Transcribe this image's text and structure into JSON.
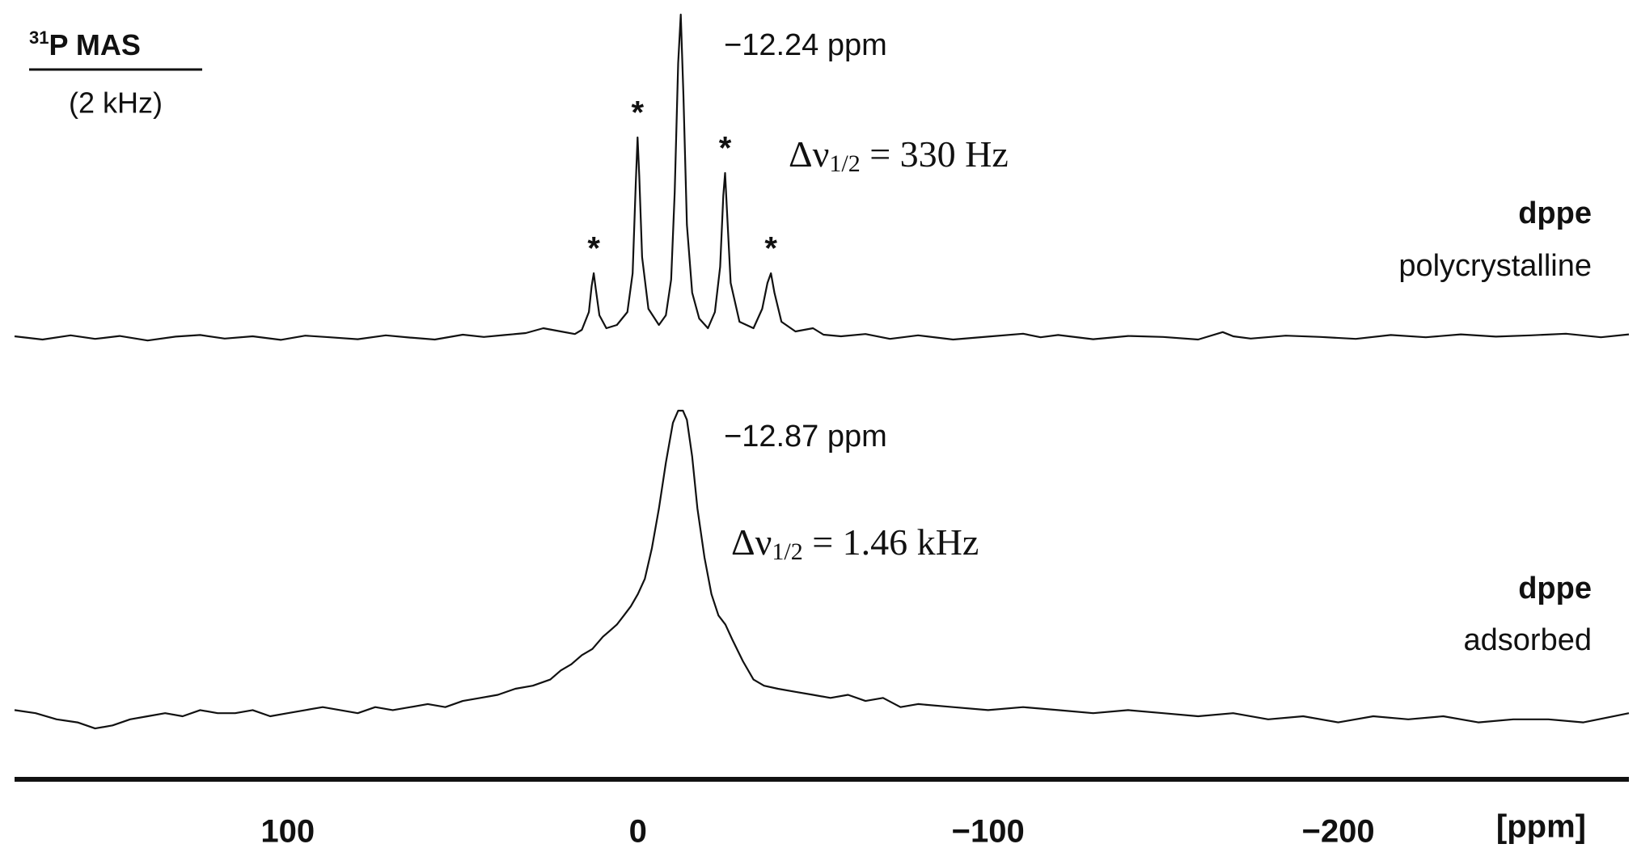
{
  "chart_data": {
    "type": "line",
    "title_isotope": "31",
    "title": "P MAS",
    "subtitle": "(2 kHz)",
    "x_label": "[ppm]",
    "xlim": [
      178,
      -283
    ],
    "xticks": [
      100,
      0,
      {
        "value": -100,
        "label": "−100"
      },
      {
        "value": -200,
        "label": "−200"
      }
    ],
    "color": "#111111",
    "sideband_marker": "*",
    "sideband_ppm": [
      12.6,
      0.1,
      -24.9,
      -38
    ],
    "series": [
      {
        "compound": "dppe",
        "state": "polycrystalline",
        "peak_label": "−12.24 ppm",
        "width_symbol": "Δν",
        "width_sub": "1/2",
        "width_value": " = 330 Hz",
        "x": [
          178,
          170,
          162,
          155,
          148,
          140,
          132,
          125,
          118,
          110,
          102,
          95,
          88,
          80,
          72,
          65,
          58,
          50,
          44,
          38,
          32,
          27,
          22,
          18,
          16,
          14,
          13.2,
          12.6,
          12,
          11,
          9,
          6,
          3,
          1.5,
          0.6,
          0.1,
          -0.4,
          -1.2,
          -3,
          -6,
          -8,
          -9.5,
          -10.5,
          -11.5,
          -12.24,
          -13,
          -14,
          -15.5,
          -17.5,
          -20,
          -22,
          -23.5,
          -24.4,
          -24.9,
          -25.4,
          -26.5,
          -29,
          -33,
          -35.5,
          -37,
          -38,
          -39,
          -41,
          -45,
          -50,
          -53,
          -58,
          -65,
          -72,
          -80,
          -90,
          -100,
          -110,
          -115,
          -120,
          -130,
          -140,
          -150,
          -160,
          -167,
          -170,
          -175,
          -185,
          -195,
          -205,
          -215,
          -225,
          -235,
          -245,
          -255,
          -265,
          -275,
          -283
        ],
        "values": [
          0.5,
          -0.5,
          0.8,
          -0.3,
          0.6,
          -0.8,
          0.4,
          0.9,
          -0.2,
          0.5,
          -0.6,
          0.7,
          0.2,
          -0.4,
          0.8,
          0.1,
          -0.5,
          1,
          0.3,
          0.9,
          1.5,
          3,
          2,
          1.2,
          2.5,
          8,
          16,
          20,
          15,
          7,
          3,
          4,
          8,
          20,
          48,
          62,
          50,
          25,
          9,
          4,
          7,
          18,
          45,
          85,
          100,
          75,
          35,
          14,
          6,
          3,
          8,
          22,
          44,
          51,
          40,
          17,
          5,
          3,
          9,
          17,
          20,
          14,
          5,
          2,
          3,
          1,
          0.5,
          1.2,
          -0.3,
          0.8,
          -0.5,
          0.4,
          1.3,
          0.2,
          0.9,
          -0.4,
          0.6,
          0.3,
          -0.5,
          1.8,
          0.5,
          -0.2,
          0.7,
          0.3,
          -0.3,
          0.9,
          0.2,
          1.1,
          0.4,
          0.8,
          1.3,
          0.2,
          1.1
        ]
      },
      {
        "compound": "dppe",
        "state": "adsorbed",
        "peak_label": "−12.87 ppm",
        "width_symbol": "Δν",
        "width_sub": "1/2",
        "width_value": " = 1.46 kHz",
        "x": [
          178,
          172,
          166,
          160,
          155,
          150,
          145,
          140,
          135,
          130,
          125,
          120,
          115,
          110,
          105,
          100,
          95,
          90,
          85,
          80,
          75,
          70,
          65,
          60,
          55,
          50,
          45,
          40,
          35,
          30,
          25,
          22,
          19,
          16,
          13,
          10,
          8,
          6,
          4,
          2,
          0,
          -2,
          -4,
          -6,
          -8,
          -10,
          -11.5,
          -12.87,
          -14,
          -15.5,
          -17,
          -19,
          -21,
          -23,
          -25,
          -27,
          -30,
          -33,
          -36,
          -40,
          -45,
          -50,
          -55,
          -60,
          -65,
          -70,
          -75,
          -80,
          -90,
          -100,
          -110,
          -120,
          -130,
          -140,
          -150,
          -160,
          -170,
          -180,
          -190,
          -200,
          -210,
          -220,
          -230,
          -240,
          -250,
          -260,
          -270,
          -283
        ],
        "values": [
          2,
          1,
          -1,
          -2,
          -4,
          -3,
          -1,
          0,
          1,
          0,
          2,
          1,
          1,
          2,
          0,
          1,
          2,
          3,
          2,
          1,
          3,
          2,
          3,
          4,
          3,
          5,
          6,
          7,
          9,
          10,
          12,
          15,
          17,
          20,
          22,
          26,
          28,
          30,
          33,
          36,
          40,
          45,
          55,
          68,
          83,
          96,
          100,
          100,
          97,
          85,
          68,
          52,
          40,
          33,
          30,
          25,
          18,
          12,
          10,
          9,
          8,
          7,
          6,
          7,
          5,
          6,
          3,
          4,
          3,
          2,
          3,
          2,
          1,
          2,
          1,
          0,
          1,
          -1,
          0,
          -2,
          0,
          -1,
          0,
          -2,
          -1,
          -1,
          -2,
          1
        ]
      }
    ]
  }
}
